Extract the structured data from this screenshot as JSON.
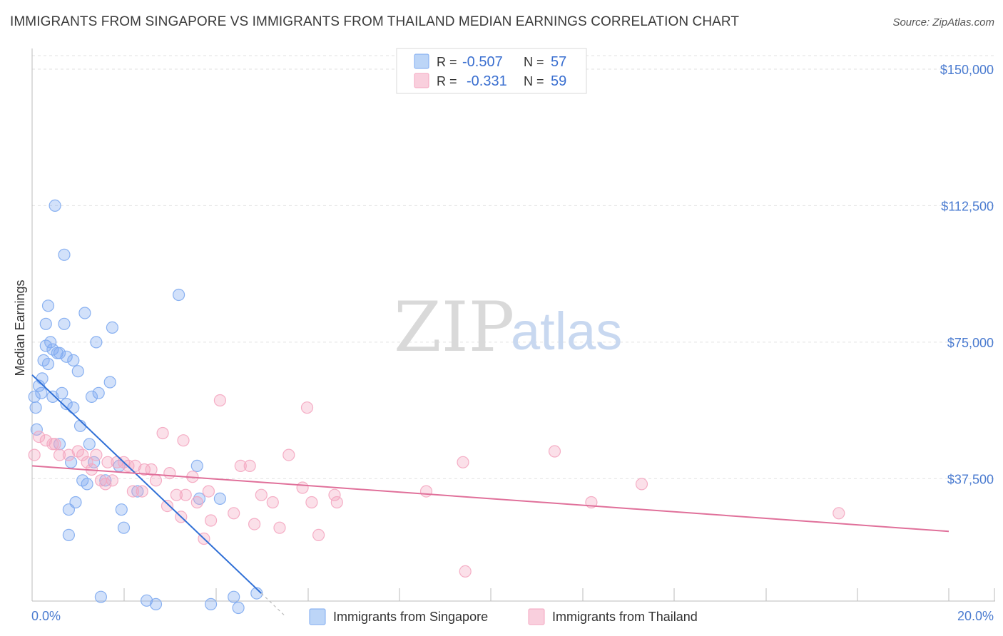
{
  "title": "IMMIGRANTS FROM SINGAPORE VS IMMIGRANTS FROM THAILAND MEDIAN EARNINGS CORRELATION CHART",
  "source": "Source: ZipAtlas.com",
  "watermark": {
    "zip": "ZIP",
    "atlas": "atlas"
  },
  "legend": {
    "r_label": "R =",
    "n_label": "N =",
    "rows": [
      {
        "r": "-0.507",
        "n": "57",
        "color": "#a9c8f5"
      },
      {
        "r": "-0.331",
        "n": "59",
        "color": "#f7c0d2"
      }
    ]
  },
  "chart_data": {
    "type": "scatter",
    "title": "IMMIGRANTS FROM SINGAPORE VS IMMIGRANTS FROM THAILAND MEDIAN EARNINGS CORRELATION CHART",
    "xlabel": "",
    "ylabel": "Median Earnings",
    "xlim": [
      0,
      20
    ],
    "ylim": [
      0,
      152000
    ],
    "x_tick_labels": [
      "0.0%",
      "20.0%"
    ],
    "y_ticks": [
      37500,
      75000,
      112500,
      150000
    ],
    "y_tick_labels": [
      "$37,500",
      "$75,000",
      "$112,500",
      "$150,000"
    ],
    "series": [
      {
        "name": "Immigrants from Singapore",
        "color": "#7eaaf0",
        "line_color": "#2f6fd6",
        "trend": {
          "x0": 0.0,
          "y0": 66000,
          "x1": 5.0,
          "y1": 6000,
          "dash_to_x": 5.5
        },
        "points": [
          [
            0.05,
            60000
          ],
          [
            0.08,
            57000
          ],
          [
            0.1,
            51000
          ],
          [
            0.15,
            63000
          ],
          [
            0.2,
            61000
          ],
          [
            0.22,
            65000
          ],
          [
            0.25,
            70000
          ],
          [
            0.3,
            80000
          ],
          [
            0.3,
            74000
          ],
          [
            0.35,
            85000
          ],
          [
            0.35,
            69000
          ],
          [
            0.4,
            75000
          ],
          [
            0.45,
            73000
          ],
          [
            0.5,
            112500
          ],
          [
            0.55,
            72000
          ],
          [
            0.6,
            47000
          ],
          [
            0.6,
            72000
          ],
          [
            0.65,
            61000
          ],
          [
            0.7,
            80000
          ],
          [
            0.7,
            99000
          ],
          [
            0.75,
            58000
          ],
          [
            0.75,
            71000
          ],
          [
            0.8,
            29000
          ],
          [
            0.8,
            22000
          ],
          [
            0.85,
            42000
          ],
          [
            0.9,
            70000
          ],
          [
            0.9,
            57000
          ],
          [
            0.95,
            31000
          ],
          [
            1.0,
            67000
          ],
          [
            1.05,
            52000
          ],
          [
            1.1,
            37000
          ],
          [
            1.15,
            83000
          ],
          [
            1.2,
            36000
          ],
          [
            1.25,
            47000
          ],
          [
            1.3,
            60000
          ],
          [
            1.35,
            42000
          ],
          [
            1.4,
            75000
          ],
          [
            1.45,
            61000
          ],
          [
            1.5,
            5000
          ],
          [
            1.6,
            37000
          ],
          [
            1.7,
            64000
          ],
          [
            1.75,
            79000
          ],
          [
            1.9,
            41000
          ],
          [
            1.95,
            29000
          ],
          [
            2.0,
            24000
          ],
          [
            2.3,
            34000
          ],
          [
            2.5,
            4000
          ],
          [
            2.7,
            3000
          ],
          [
            3.2,
            88000
          ],
          [
            3.6,
            41000
          ],
          [
            3.65,
            32000
          ],
          [
            3.9,
            3000
          ],
          [
            4.1,
            32000
          ],
          [
            4.5,
            2000
          ],
          [
            4.4,
            5000
          ],
          [
            4.9,
            6000
          ],
          [
            0.45,
            60000
          ]
        ]
      },
      {
        "name": "Immigrants from Thailand",
        "color": "#f4a6c0",
        "line_color": "#e0709a",
        "trend": {
          "x0": 0.0,
          "y0": 41000,
          "x1": 20.0,
          "y1": 23000
        },
        "points": [
          [
            0.05,
            44000
          ],
          [
            0.15,
            49000
          ],
          [
            0.3,
            48000
          ],
          [
            0.45,
            47000
          ],
          [
            0.5,
            47000
          ],
          [
            0.6,
            44000
          ],
          [
            0.8,
            44000
          ],
          [
            1.0,
            45000
          ],
          [
            1.1,
            44000
          ],
          [
            1.2,
            42000
          ],
          [
            1.3,
            40000
          ],
          [
            1.4,
            44000
          ],
          [
            1.5,
            37000
          ],
          [
            1.6,
            36000
          ],
          [
            1.65,
            42000
          ],
          [
            1.75,
            37000
          ],
          [
            1.85,
            42000
          ],
          [
            2.0,
            42000
          ],
          [
            2.1,
            41000
          ],
          [
            2.2,
            34000
          ],
          [
            2.25,
            41000
          ],
          [
            2.4,
            34000
          ],
          [
            2.45,
            40000
          ],
          [
            2.6,
            40000
          ],
          [
            2.7,
            37000
          ],
          [
            2.85,
            50000
          ],
          [
            2.95,
            30000
          ],
          [
            3.0,
            39000
          ],
          [
            3.15,
            33000
          ],
          [
            3.25,
            27000
          ],
          [
            3.35,
            33000
          ],
          [
            3.3,
            48000
          ],
          [
            3.5,
            38000
          ],
          [
            3.6,
            31000
          ],
          [
            3.75,
            21000
          ],
          [
            3.85,
            34000
          ],
          [
            3.9,
            26000
          ],
          [
            4.1,
            59000
          ],
          [
            4.4,
            28000
          ],
          [
            4.55,
            41000
          ],
          [
            4.75,
            41000
          ],
          [
            4.85,
            25000
          ],
          [
            5.0,
            33000
          ],
          [
            5.25,
            31000
          ],
          [
            5.4,
            24000
          ],
          [
            5.6,
            44000
          ],
          [
            5.9,
            35000
          ],
          [
            6.0,
            57000
          ],
          [
            6.1,
            31000
          ],
          [
            6.25,
            22000
          ],
          [
            6.6,
            33000
          ],
          [
            6.65,
            31000
          ],
          [
            8.6,
            34000
          ],
          [
            9.4,
            42000
          ],
          [
            9.45,
            12000
          ],
          [
            11.4,
            45000
          ],
          [
            12.2,
            31000
          ],
          [
            13.3,
            36000
          ],
          [
            17.6,
            28000
          ]
        ]
      }
    ],
    "legend_position": "top-center",
    "grid": true
  },
  "bottom_legend": [
    {
      "label": "Immigrants from Singapore",
      "color": "#a9c8f5"
    },
    {
      "label": "Immigrants from Thailand",
      "color": "#f7c0d2"
    }
  ]
}
